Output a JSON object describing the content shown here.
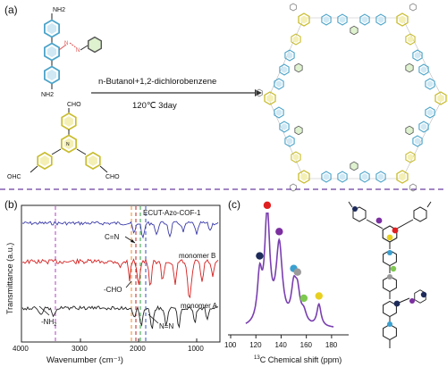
{
  "panel_a": {
    "label": "(a)",
    "reagent1_amine_top": "NH2",
    "reagent1_amine_bottom": "NH2",
    "reagent2_cho_top": "CHO",
    "reagent2_cho_left": "OHC",
    "reagent2_cho_right": "CHO",
    "condition_line1": "n-Butanol+1,2-dichlorobenzene",
    "condition_line2": "120℃  3day",
    "colors": {
      "arrow": "#333333",
      "benzene_blue": "#4aa3c9",
      "triazine_yellow": "#d4c83a",
      "azo_red": "#e05050",
      "green": "#7ec850",
      "divider": "#6a3fa0"
    }
  },
  "panel_b": {
    "label": "(b)",
    "ylabel": "Transmittance (a.u.)",
    "xlabel": "Wavenumber (cm⁻¹)",
    "ticks": [
      "4000",
      "3000",
      "2000",
      "1000"
    ],
    "series_labels": [
      "ECUT-Azo-COF-1",
      "monomer B",
      "monomer A"
    ],
    "annotations": [
      "C=N",
      "-CHO",
      "-NH",
      "N=N"
    ],
    "nh_subscript": "2",
    "colors": {
      "cof": "#3a3aa8",
      "monomer_b": "#d42020",
      "monomer_a": "#222222"
    }
  },
  "panel_c": {
    "label": "(c)",
    "xlabel_sup": "13",
    "xlabel": "C Chemical shift (ppm)",
    "ticks": [
      "100",
      "120",
      "140",
      "160",
      "180"
    ],
    "peaks": [
      {
        "ppm": 123,
        "color": "#1d2a5a"
      },
      {
        "ppm": 129,
        "color": "#e02020"
      },
      {
        "ppm": 138.5,
        "color": "#7b2fa0"
      },
      {
        "ppm": 150,
        "color": "#3aa0d0"
      },
      {
        "ppm": 153,
        "color": "#9a9a9a"
      },
      {
        "ppm": 158,
        "color": "#7ec850"
      },
      {
        "ppm": 170,
        "color": "#e8d020"
      }
    ],
    "line_color": "#7a3fb0"
  }
}
